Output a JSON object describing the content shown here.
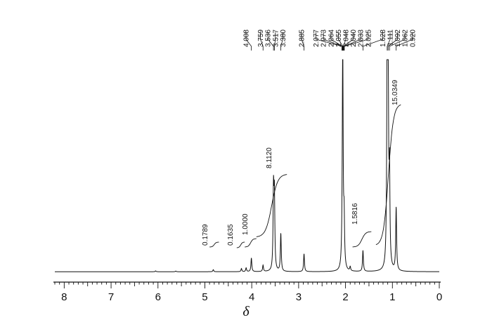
{
  "chart_data": {
    "type": "line",
    "title": "",
    "xlabel": "δ",
    "ylabel": "",
    "xlim": [
      8.2,
      0
    ],
    "x_reversed": true,
    "grid": false,
    "x_ticks": [
      "8",
      "7",
      "6",
      "5",
      "4",
      "3",
      "2",
      "1",
      "0"
    ],
    "peak_labels": [
      "4.008",
      "3.759",
      "3.536",
      "3.517",
      "3.380",
      "2.885",
      "2.077",
      "2.073",
      "2.064",
      "2.055",
      "2.048",
      "2.040",
      "2.033",
      "2.025",
      "1.628",
      "1.111",
      "1.092",
      "1.062",
      "0.920"
    ],
    "integrals": [
      {
        "label": "0.1789",
        "from": 4.9,
        "to": 4.7
      },
      {
        "label": "0.1635",
        "from": 4.32,
        "to": 4.15
      },
      {
        "label": "1.0000",
        "from": 4.15,
        "to": 3.9
      },
      {
        "label": "8.1120",
        "from": 3.9,
        "to": 3.25
      },
      {
        "label": "1.5816",
        "from": 1.85,
        "to": 1.45
      },
      {
        "label": "15.0349",
        "from": 1.35,
        "to": 0.82
      }
    ],
    "series": [
      {
        "peaks": [
          {
            "x": 6.05,
            "h": 0.4
          },
          {
            "x": 5.62,
            "h": 0.3
          },
          {
            "x": 4.82,
            "h": 1.0
          },
          {
            "x": 4.22,
            "h": 1.5
          },
          {
            "x": 4.12,
            "h": 1.8
          },
          {
            "x": 4.008,
            "h": 6.5
          },
          {
            "x": 3.759,
            "h": 3.0
          },
          {
            "x": 3.536,
            "h": 37.0
          },
          {
            "x": 3.517,
            "h": 34.0
          },
          {
            "x": 3.38,
            "h": 18.0
          },
          {
            "x": 2.885,
            "h": 8.5
          },
          {
            "x": 2.06,
            "h": 109.0
          },
          {
            "x": 2.03,
            "h": 22.0
          },
          {
            "x": 1.9,
            "h": 2.0
          },
          {
            "x": 1.628,
            "h": 10.0
          },
          {
            "x": 1.111,
            "h": 105.0
          },
          {
            "x": 1.092,
            "h": 96.0
          },
          {
            "x": 1.062,
            "h": 42.0
          },
          {
            "x": 0.92,
            "h": 30.0
          }
        ]
      }
    ]
  }
}
